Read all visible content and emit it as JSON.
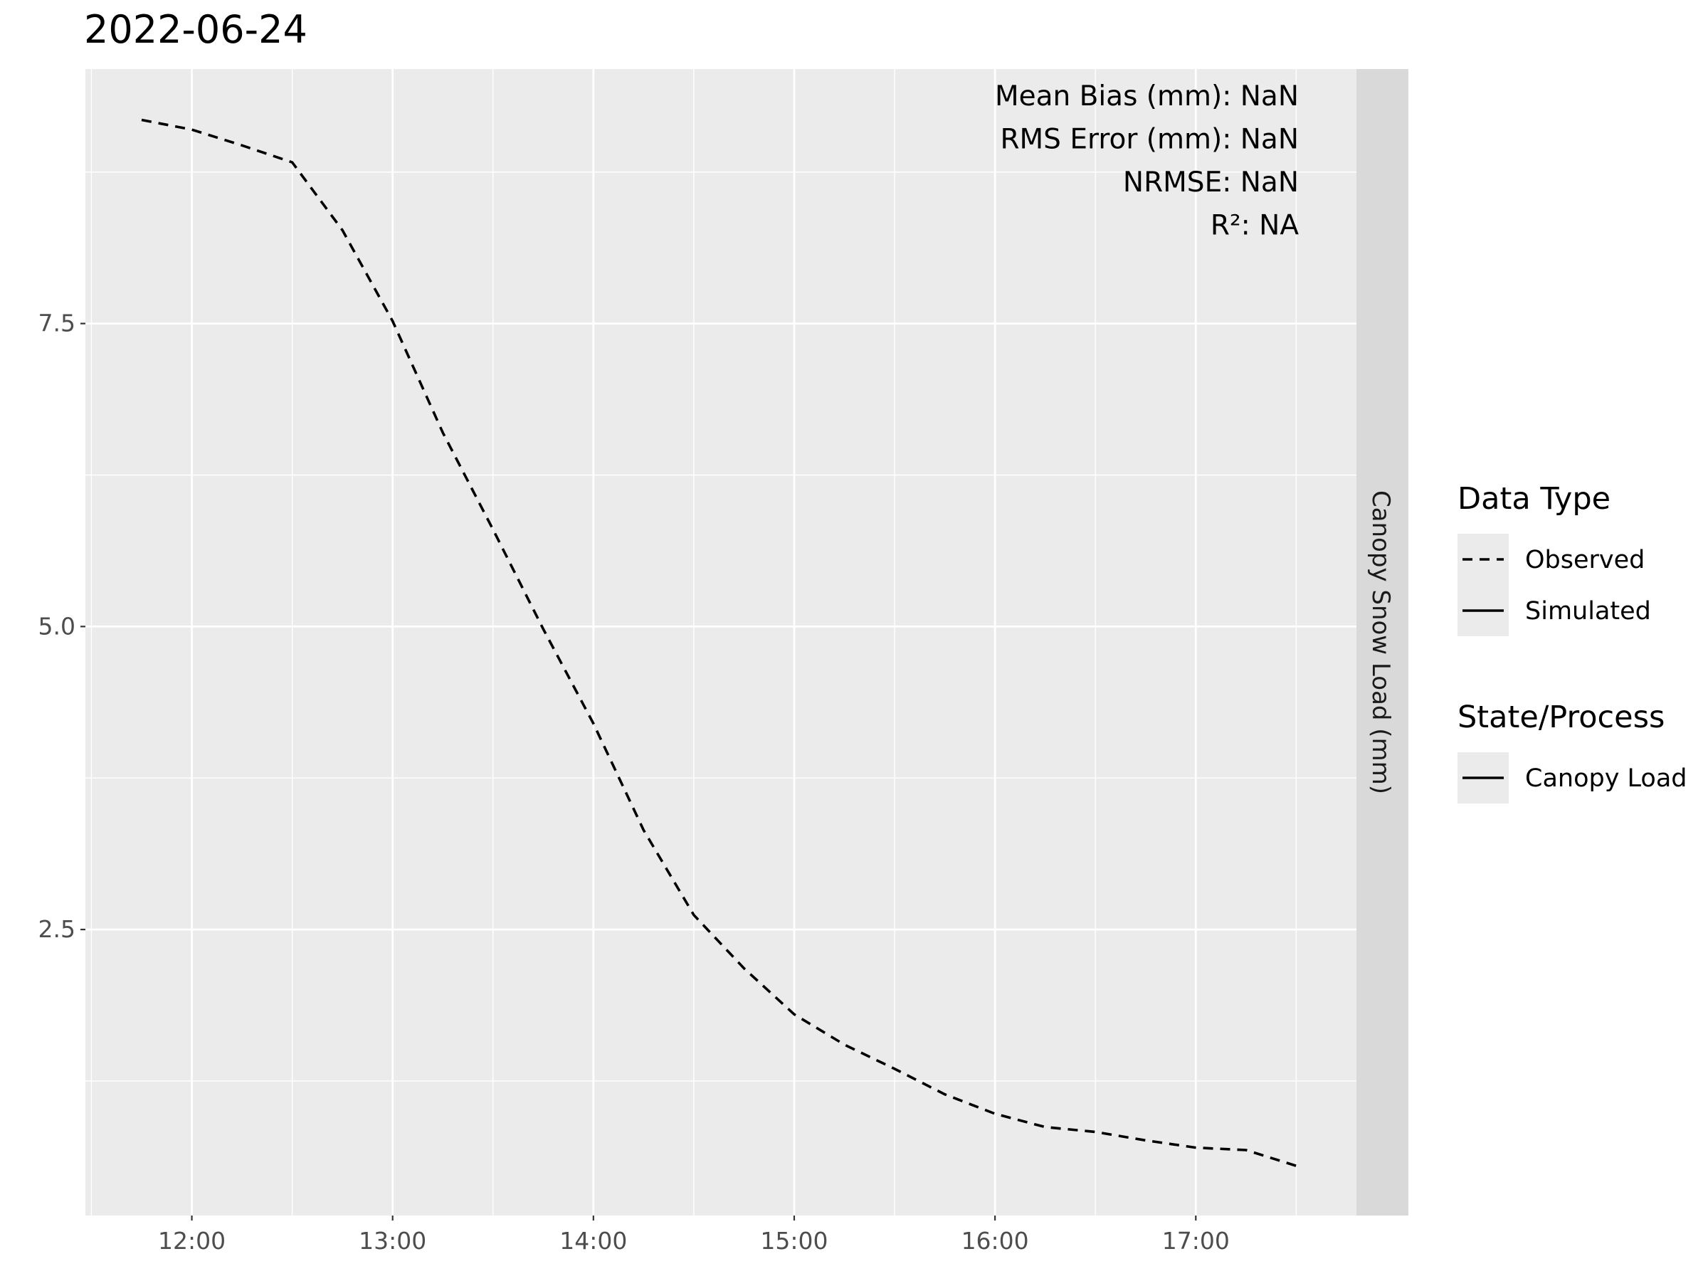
{
  "chart_data": {
    "type": "line",
    "title": "2022-06-24",
    "xlabel": "",
    "ylabel": "",
    "facet_label": "Canopy Snow Load (mm)",
    "x_axis": {
      "unit": "hour",
      "range": [
        11.47,
        17.8
      ],
      "ticks": [
        12,
        13,
        14,
        15,
        16,
        17
      ],
      "tick_labels": [
        "12:00",
        "13:00",
        "14:00",
        "15:00",
        "16:00",
        "17:00"
      ]
    },
    "y_axis": {
      "range": [
        0.14,
        9.6
      ],
      "ticks": [
        2.5,
        5.0,
        7.5
      ],
      "tick_labels": [
        "2.5",
        "5.0",
        "7.5"
      ]
    },
    "grid": true,
    "legend_position": "right",
    "stats": [
      "Mean Bias (mm): NaN",
      "RMS Error (mm): NaN",
      "NRMSE: NaN",
      "R²: NA"
    ],
    "legends": [
      {
        "title": "Data Type",
        "items": [
          {
            "label": "Observed",
            "linetype": "dashed"
          },
          {
            "label": "Simulated",
            "linetype": "solid"
          }
        ]
      },
      {
        "title": "State/Process",
        "items": [
          {
            "label": "Canopy Load",
            "linetype": "solid"
          }
        ]
      }
    ],
    "series": [
      {
        "name": "Observed",
        "linetype": "dashed",
        "color": "#000000",
        "x": [
          11.75,
          12.0,
          12.25,
          12.5,
          12.75,
          13.0,
          13.25,
          13.5,
          13.75,
          14.0,
          14.25,
          14.5,
          14.75,
          15.0,
          15.25,
          15.5,
          15.75,
          16.0,
          16.25,
          16.5,
          16.75,
          17.0,
          17.25,
          17.5
        ],
        "y": [
          9.18,
          9.1,
          8.97,
          8.83,
          8.27,
          7.52,
          6.6,
          5.8,
          4.98,
          4.2,
          3.32,
          2.62,
          2.18,
          1.8,
          1.55,
          1.35,
          1.14,
          0.98,
          0.87,
          0.83,
          0.76,
          0.7,
          0.68,
          0.55
        ]
      }
    ]
  }
}
